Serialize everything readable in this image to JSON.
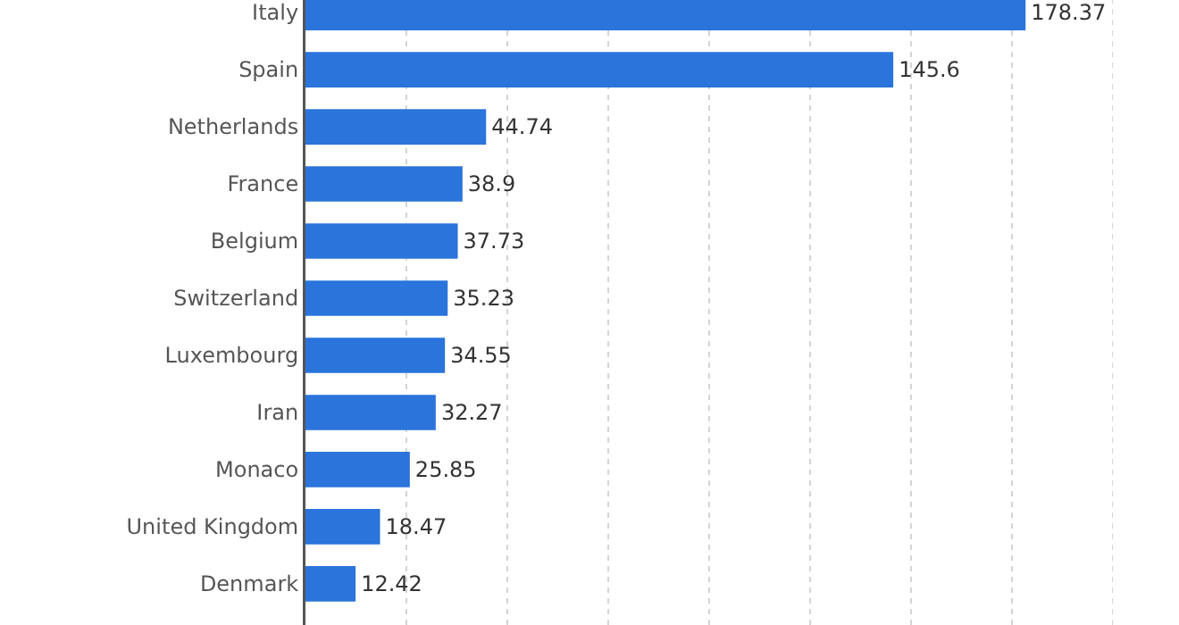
{
  "chart_data": {
    "type": "bar",
    "orientation": "horizontal",
    "categories": [
      "Italy",
      "Spain",
      "Netherlands",
      "France",
      "Belgium",
      "Switzerland",
      "Luxembourg",
      "Iran",
      "Monaco",
      "United Kingdom",
      "Denmark"
    ],
    "values": [
      178.37,
      145.6,
      44.74,
      38.9,
      37.73,
      35.23,
      34.55,
      32.27,
      25.85,
      18.47,
      12.42
    ],
    "color": "#2a74db",
    "data_labels": true,
    "grid": "x",
    "tick_labels": "y",
    "xlim": [
      0,
      200
    ],
    "xticks": [
      {
        "value": 0,
        "label": null
      },
      {
        "value": 25,
        "label": null
      },
      {
        "value": 50,
        "label": null
      },
      {
        "value": 75,
        "label": null
      },
      {
        "value": 100,
        "label": null
      },
      {
        "value": 125,
        "label": null
      },
      {
        "value": 150,
        "label": null
      },
      {
        "value": 175,
        "label": null
      },
      {
        "value": 200,
        "label": null
      }
    ]
  }
}
